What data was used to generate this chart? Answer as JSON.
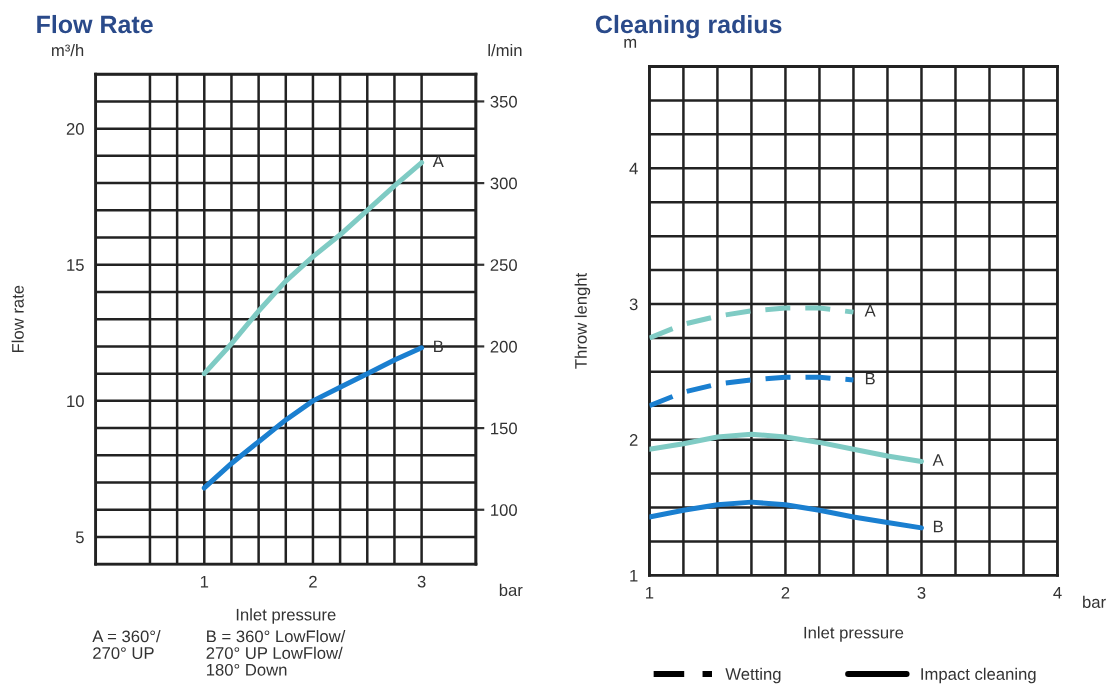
{
  "chart_data": [
    {
      "type": "line",
      "title": "Flow Rate",
      "xlabel": "Inlet pressure",
      "ylabel": "Flow rate",
      "y2label": "l/min",
      "x": [
        1,
        1.25,
        1.5,
        1.75,
        2,
        2.25,
        2.5,
        2.75,
        3
      ],
      "series": [
        {
          "name": "A",
          "color": "#7fcbc4",
          "values": [
            11,
            12.1,
            13.3,
            14.4,
            15.3,
            16.1,
            17.0,
            17.9,
            18.75
          ]
        },
        {
          "name": "B",
          "color": "#1a7fd0",
          "values": [
            6.8,
            7.7,
            8.5,
            9.3,
            10.0,
            10.5,
            11.0,
            11.5,
            11.95
          ]
        }
      ],
      "xlim": [
        0,
        3.5
      ],
      "xticks": [
        {
          "value": 0,
          "label": null
        },
        {
          "value": 0.5,
          "label": null
        },
        {
          "value": 0.75,
          "label": null
        },
        1,
        {
          "value": 1.25,
          "label": null
        },
        {
          "value": 1.5,
          "label": null
        },
        {
          "value": 1.75,
          "label": null
        },
        2,
        {
          "value": 2.25,
          "label": null
        },
        {
          "value": 2.5,
          "label": null
        },
        {
          "value": 2.75,
          "label": null
        },
        3,
        {
          "value": 3.5,
          "label": null
        }
      ],
      "ylim": [
        4,
        22
      ],
      "yticks": [
        {
          "value": 4,
          "label": null
        },
        5,
        {
          "value": 6,
          "label": null
        },
        {
          "value": 7,
          "label": null
        },
        {
          "value": 8,
          "label": null
        },
        {
          "value": 9,
          "label": null
        },
        10,
        {
          "value": 11,
          "label": null
        },
        {
          "value": 12,
          "label": null
        },
        {
          "value": 13,
          "label": null
        },
        {
          "value": 14,
          "label": null
        },
        15,
        {
          "value": 16,
          "label": null
        },
        {
          "value": 17,
          "label": null
        },
        {
          "value": 18,
          "label": null
        },
        {
          "value": 19,
          "label": null
        },
        20,
        {
          "value": 21,
          "label": null
        },
        {
          "value": 22,
          "label": null
        }
      ],
      "y2lim": [
        66.6667,
        366.6667
      ],
      "y2ticks": [
        100,
        150,
        200,
        250,
        300,
        350
      ],
      "grid": true,
      "line_style": "solid",
      "annotations": [
        "m³/h",
        "bar",
        "A = 360°/\n270° UP",
        "B = 360° LowFlow/\n270° UP LowFlow/\n180° Down"
      ]
    },
    {
      "type": "line",
      "title": "Cleaning radius",
      "xlabel": "Inlet pressure",
      "ylabel": "Throw lenght",
      "series": [
        {
          "name": "A",
          "color": "#7fcbc4",
          "line_style": "dashed",
          "x": [
            1,
            1.25,
            1.5,
            1.75,
            2,
            2.25,
            2.5
          ],
          "values": [
            2.75,
            2.85,
            2.91,
            2.95,
            2.97,
            2.97,
            2.94
          ]
        },
        {
          "name": "B",
          "color": "#1a7fd0",
          "line_style": "dashed",
          "x": [
            1,
            1.25,
            1.5,
            1.75,
            2,
            2.25,
            2.5
          ],
          "values": [
            2.25,
            2.35,
            2.41,
            2.44,
            2.46,
            2.46,
            2.44
          ]
        },
        {
          "name": "A",
          "color": "#7fcbc4",
          "line_style": "solid",
          "x": [
            1,
            1.25,
            1.5,
            1.75,
            2,
            2.25,
            2.5,
            2.75,
            3
          ],
          "values": [
            1.93,
            1.97,
            2.02,
            2.04,
            2.02,
            1.98,
            1.93,
            1.88,
            1.84
          ]
        },
        {
          "name": "B",
          "color": "#1a7fd0",
          "line_style": "solid",
          "x": [
            1,
            1.25,
            1.5,
            1.75,
            2,
            2.25,
            2.5,
            2.75,
            3
          ],
          "values": [
            1.43,
            1.48,
            1.52,
            1.54,
            1.52,
            1.48,
            1.43,
            1.39,
            1.35
          ]
        }
      ],
      "xlim": [
        1,
        4
      ],
      "xticks": [
        1,
        {
          "value": 1.25,
          "label": null
        },
        {
          "value": 1.5,
          "label": null
        },
        {
          "value": 1.75,
          "label": null
        },
        2,
        {
          "value": 2.25,
          "label": null
        },
        {
          "value": 2.5,
          "label": null
        },
        {
          "value": 2.75,
          "label": null
        },
        3,
        {
          "value": 3.25,
          "label": null
        },
        {
          "value": 3.5,
          "label": null
        },
        {
          "value": 3.75,
          "label": null
        },
        4
      ],
      "ylim": [
        1,
        4.75
      ],
      "yticks": [
        1,
        {
          "value": 1.25,
          "label": null
        },
        {
          "value": 1.5,
          "label": null
        },
        {
          "value": 1.75,
          "label": null
        },
        2,
        {
          "value": 2.25,
          "label": null
        },
        {
          "value": 2.5,
          "label": null
        },
        {
          "value": 2.75,
          "label": null
        },
        3,
        {
          "value": 3.25,
          "label": null
        },
        {
          "value": 3.5,
          "label": null
        },
        {
          "value": 3.75,
          "label": null
        },
        4,
        {
          "value": 4.25,
          "label": null
        },
        {
          "value": 4.5,
          "label": null
        },
        {
          "value": 4.75,
          "label": null
        }
      ],
      "grid": true,
      "annotations": [
        "m",
        "bar",
        "Wetting",
        "Impact cleaning"
      ]
    }
  ]
}
